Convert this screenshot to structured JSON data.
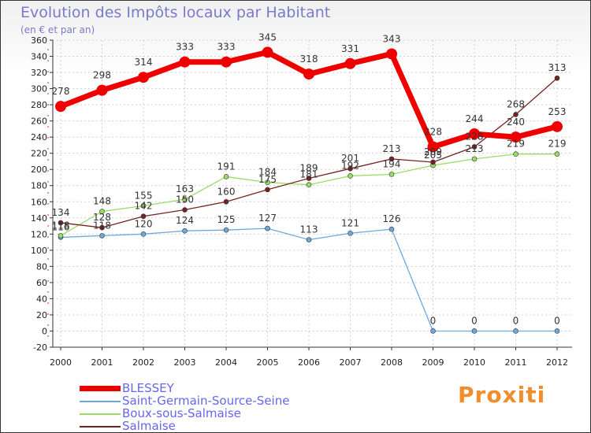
{
  "chart_data": {
    "type": "line",
    "title": "Evolution des Impôts locaux par Habitant",
    "subtitle": "(en € et par an)",
    "xlabel": "",
    "ylabel": "",
    "ylim": [
      -20,
      360
    ],
    "ytick_step": 20,
    "x": [
      "2000",
      "2001",
      "2002",
      "2003",
      "2004",
      "2005",
      "2006",
      "2007",
      "2008",
      "2009",
      "2010",
      "2011",
      "2012"
    ],
    "series": [
      {
        "name": "BLESSEY",
        "color": "#ee0000",
        "values": [
          278,
          298,
          314,
          333,
          333,
          345,
          318,
          331,
          343,
          228,
          244,
          240,
          253
        ]
      },
      {
        "name": "Saint-Germain-Source-Seine",
        "color": "#6fa8dc",
        "values": [
          116,
          118,
          120,
          124,
          125,
          127,
          113,
          121,
          126,
          0,
          0,
          0,
          0
        ]
      },
      {
        "name": "Boux-sous-Salmaise",
        "color": "#99dd66",
        "values": [
          118,
          148,
          155,
          163,
          191,
          184,
          181,
          192,
          194,
          205,
          213,
          219,
          219
        ]
      },
      {
        "name": "Salmaise",
        "color": "#772222",
        "values": [
          134,
          128,
          142,
          150,
          160,
          175,
          189,
          201,
          213,
          209,
          228,
          268,
          313
        ]
      }
    ],
    "data_labels": [
      {
        "series": 0,
        "text": [
          "278",
          "298",
          "314",
          "333",
          "333",
          "345",
          "318",
          "331",
          "343",
          "228",
          "244",
          "240",
          "253"
        ]
      },
      {
        "series": 1,
        "text": [
          "116",
          "118",
          "120",
          "124",
          "125",
          "127",
          "113",
          "121",
          "126",
          "0",
          "0",
          "0",
          "0"
        ]
      },
      {
        "series": 2,
        "text": [
          "118",
          "148",
          "155",
          "163",
          "191",
          "184",
          "181",
          "192",
          "194",
          "205",
          "213",
          "219",
          "219"
        ]
      },
      {
        "series": 3,
        "text": [
          "134",
          "128",
          "142",
          "150",
          "160",
          "175",
          "189",
          "201",
          "213",
          "209",
          "228",
          "268",
          "313"
        ]
      }
    ],
    "legend_position": "bottom-left",
    "grid": true
  },
  "brand": "Proxiti"
}
